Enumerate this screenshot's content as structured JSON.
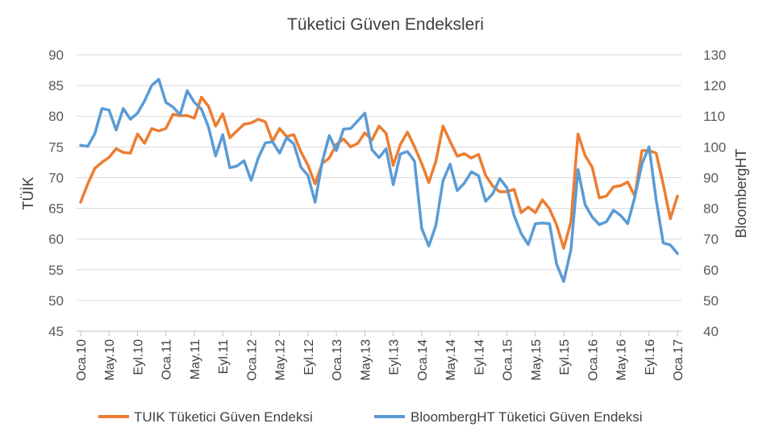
{
  "chart_data": {
    "type": "line",
    "title": "Tüketici Güven Endeksleri",
    "ylabel": "TÜİK",
    "y2label": "BloombergHT",
    "ylim": [
      45,
      90
    ],
    "y2lim": [
      40,
      130
    ],
    "yticks": [
      45,
      50,
      55,
      60,
      65,
      70,
      75,
      80,
      85,
      90
    ],
    "y2ticks": [
      40,
      50,
      60,
      70,
      80,
      90,
      100,
      110,
      120,
      130
    ],
    "xticks": [
      {
        "i": 0,
        "label": "Oca.10"
      },
      {
        "i": 4,
        "label": "May.10"
      },
      {
        "i": 8,
        "label": "Eyl.10"
      },
      {
        "i": 12,
        "label": "Oca.11"
      },
      {
        "i": 16,
        "label": "May.11"
      },
      {
        "i": 20,
        "label": "Eyl.11"
      },
      {
        "i": 24,
        "label": "Oca.12"
      },
      {
        "i": 28,
        "label": "May.12"
      },
      {
        "i": 32,
        "label": "Eyl.12"
      },
      {
        "i": 36,
        "label": "Oca.13"
      },
      {
        "i": 40,
        "label": "May.13"
      },
      {
        "i": 44,
        "label": "Eyl.13"
      },
      {
        "i": 48,
        "label": "Oca.14"
      },
      {
        "i": 52,
        "label": "May.14"
      },
      {
        "i": 56,
        "label": "Eyl.14"
      },
      {
        "i": 60,
        "label": "Oca.15"
      },
      {
        "i": 64,
        "label": "May.15"
      },
      {
        "i": 68,
        "label": "Eyl.15"
      },
      {
        "i": 72,
        "label": "Oca.16"
      },
      {
        "i": 76,
        "label": "May.16"
      },
      {
        "i": 80,
        "label": "Eyl.16"
      },
      {
        "i": 84,
        "label": "Oca.17"
      }
    ],
    "series": [
      {
        "name": "TUIK Tüketici Güven Endeksi",
        "color": "#ED7D31",
        "axis": "left",
        "values": [
          66.0,
          69.0,
          71.5,
          72.5,
          73.3,
          74.7,
          74.1,
          74.0,
          77.1,
          75.6,
          78.0,
          77.6,
          78.0,
          80.3,
          80.1,
          80.1,
          79.7,
          83.1,
          81.6,
          78.4,
          80.4,
          76.5,
          77.6,
          78.7,
          78.9,
          79.5,
          79.1,
          75.9,
          78.0,
          76.7,
          77.0,
          74.2,
          72.0,
          69.0,
          72.3,
          73.2,
          75.4,
          76.3,
          75.0,
          75.6,
          77.3,
          76.1,
          78.4,
          77.2,
          72.0,
          75.4,
          77.4,
          75.0,
          72.3,
          69.2,
          72.7,
          78.4,
          75.9,
          73.5,
          73.9,
          73.2,
          73.8,
          70.4,
          68.6,
          67.7,
          67.7,
          68.1,
          64.3,
          65.2,
          64.3,
          66.4,
          64.9,
          62.3,
          58.5,
          62.8,
          77.1,
          73.6,
          71.7,
          66.7,
          67.0,
          68.5,
          68.7,
          69.3,
          67.0,
          74.4,
          74.4,
          74.0,
          68.9,
          63.3,
          67.0
        ]
      },
      {
        "name": "BloombergHT Tüketici Güven Endeksi",
        "color": "#5B9BD5",
        "axis": "right",
        "values": [
          100.5,
          100.2,
          104.3,
          112.5,
          112.0,
          105.5,
          112.5,
          109.0,
          111.0,
          115.0,
          120.0,
          122.0,
          114.5,
          113.0,
          110.5,
          118.3,
          114.5,
          112.3,
          106.4,
          97.1,
          104.0,
          93.2,
          93.8,
          95.5,
          89.1,
          96.4,
          101.3,
          101.7,
          98.0,
          103.0,
          101.0,
          93.4,
          90.7,
          82.0,
          95.1,
          103.7,
          98.8,
          105.8,
          106.0,
          108.5,
          111.0,
          99.1,
          96.5,
          99.4,
          87.7,
          97.7,
          98.5,
          95.3,
          73.5,
          67.7,
          74.5,
          89.0,
          94.4,
          85.8,
          88.2,
          91.9,
          90.6,
          82.3,
          84.8,
          89.7,
          86.7,
          77.7,
          71.8,
          68.2,
          75.0,
          75.2,
          75.0,
          61.8,
          56.2,
          66.5,
          92.6,
          81.2,
          77.2,
          74.7,
          75.6,
          79.4,
          77.7,
          75.0,
          83.6,
          94.5,
          100.0,
          82.8,
          68.7,
          68.1,
          65.3
        ]
      }
    ]
  }
}
